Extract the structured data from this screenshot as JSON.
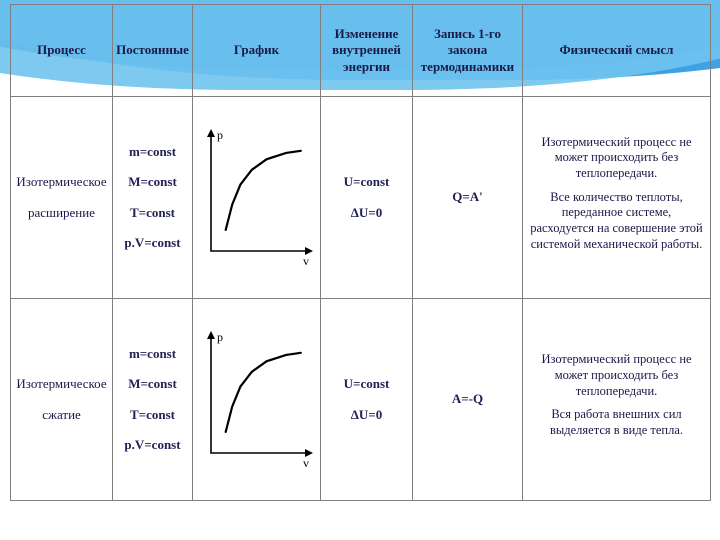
{
  "headers": {
    "process": "Процесс",
    "constants": "Постоянные",
    "graph": "График",
    "dU": "Изменение внутренней энергии",
    "law1": "Запись 1-го закона термодинамики",
    "meaning": "Физический смысл"
  },
  "rows": [
    {
      "process": [
        "Изотермическое",
        "расширение"
      ],
      "constants": [
        "m=const",
        "M=const",
        "T=const",
        "p.V=const"
      ],
      "dU": [
        "U=const",
        "ΔU=0"
      ],
      "law": "Q=A'",
      "meaning_p1": "Изотермический процесс не может происходить без теплопередачи.",
      "meaning_p2": "Все количество теплоты, переданное системе, расходуется на совершение этой системой механической работы.",
      "graph": {
        "type": "line",
        "axis_x": "v",
        "axis_y": "p",
        "axis_color": "#000000",
        "curve_color": "#000000",
        "curve_width": 2.2,
        "points": [
          [
            18,
            20
          ],
          [
            26,
            44
          ],
          [
            36,
            63
          ],
          [
            50,
            77
          ],
          [
            68,
            87
          ],
          [
            92,
            93
          ],
          [
            110,
            95
          ]
        ],
        "xlim": [
          0,
          120
        ],
        "ylim": [
          0,
          110
        ]
      }
    },
    {
      "process": [
        "Изотермическое",
        "сжатие"
      ],
      "constants": [
        "m=const",
        "M=const",
        "T=const",
        "p.V=const"
      ],
      "dU": [
        "U=const",
        "ΔU=0"
      ],
      "law": "A=-Q",
      "meaning_p1": "Изотермический процесс не может происходить без теплопередачи.",
      "meaning_p2": "Вся работа внешних сил выделяется в виде тепла.",
      "graph": {
        "type": "line",
        "axis_x": "v",
        "axis_y": "p",
        "axis_color": "#000000",
        "curve_color": "#000000",
        "curve_width": 2.2,
        "points": [
          [
            18,
            20
          ],
          [
            26,
            44
          ],
          [
            36,
            63
          ],
          [
            50,
            77
          ],
          [
            68,
            87
          ],
          [
            92,
            93
          ],
          [
            110,
            95
          ]
        ],
        "xlim": [
          0,
          120
        ],
        "ylim": [
          0,
          110
        ]
      }
    }
  ],
  "style": {
    "font_family": "Times New Roman",
    "text_color": "#1a1a4a",
    "border_color": "#7f7f7f",
    "background": "#ffffff",
    "wave_colors": [
      "#0d6bb8",
      "#2997e2",
      "#6fc3ee"
    ],
    "header_fontsize_pt": 11,
    "body_fontsize_pt": 10
  }
}
